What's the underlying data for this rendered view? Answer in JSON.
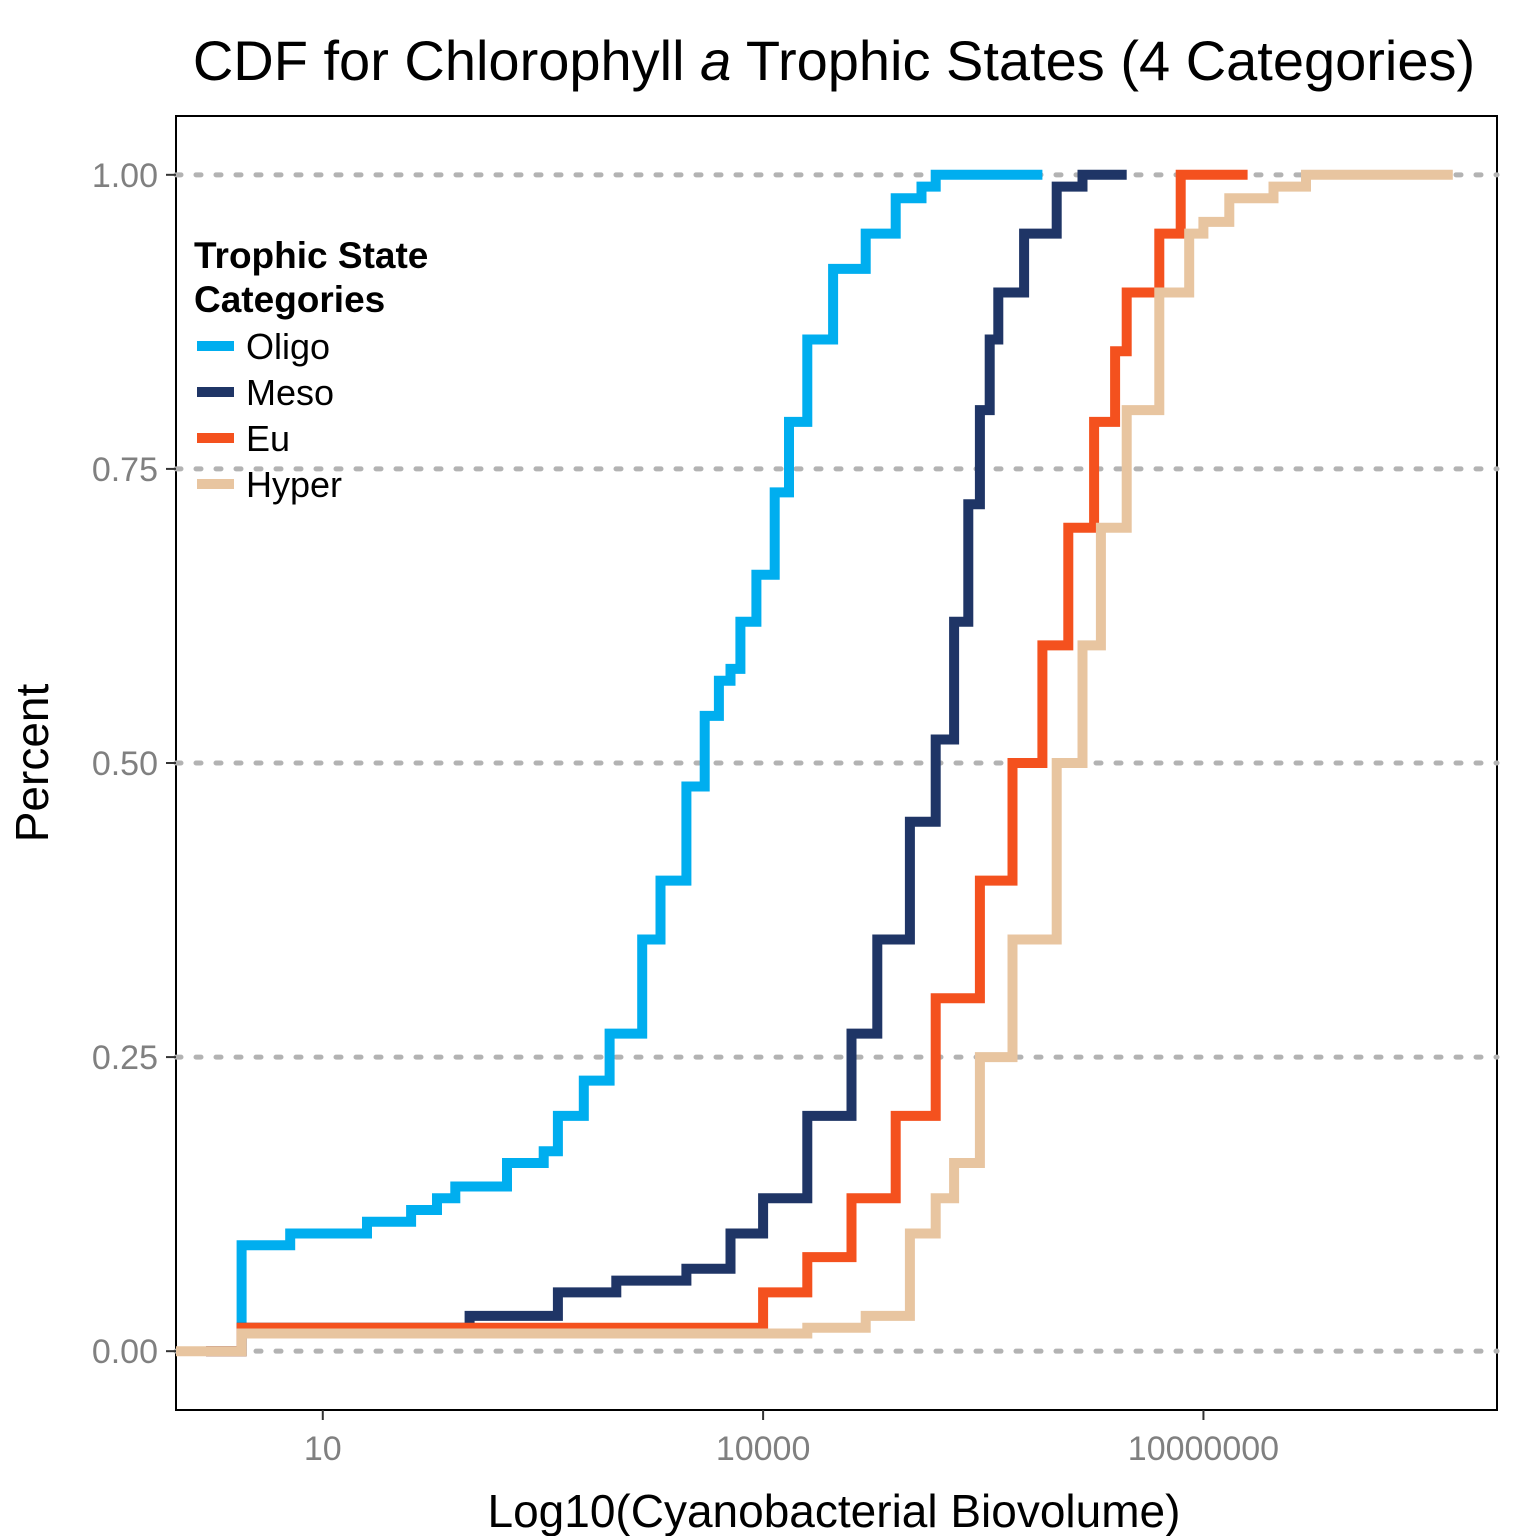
{
  "chart_data": {
    "type": "line",
    "title": {
      "prefix": "CDF for Chlorophyll ",
      "italic": "a",
      "suffix": " Trophic States (4 Categories)"
    },
    "xlabel": "Log10(Cyanobacterial Biovolume)",
    "ylabel": "Percent",
    "x_scale": "log10",
    "xlim": [
      1,
      1000000000
    ],
    "ylim": [
      -0.05,
      1.05
    ],
    "x_ticks": [
      {
        "value": 10,
        "label": "10"
      },
      {
        "value": 10000,
        "label": "10000"
      },
      {
        "value": 10000000,
        "label": "10000000"
      }
    ],
    "y_ticks": [
      {
        "value": 0.0,
        "label": "0.00"
      },
      {
        "value": 0.25,
        "label": "0.25"
      },
      {
        "value": 0.5,
        "label": "0.50"
      },
      {
        "value": 0.75,
        "label": "0.75"
      },
      {
        "value": 1.0,
        "label": "1.00"
      }
    ],
    "grid": "horizontal dotted at y ticks",
    "legend": {
      "title_lines": [
        "Trophic State",
        "Categories"
      ],
      "placement": "top-left inside"
    },
    "series": [
      {
        "name": "Oligo",
        "color": "#00AEEF",
        "x": [
          1.6,
          2.8,
          2.8,
          4.5,
          6,
          12,
          20,
          40,
          60,
          80,
          180,
          300,
          320,
          400,
          600,
          900,
          1500,
          2000,
          3000,
          4000,
          5000,
          6000,
          7000,
          9000,
          12000,
          15000,
          20000,
          30000,
          50000,
          80000,
          120000,
          150000,
          200000,
          250000,
          300000,
          400000,
          500000,
          800000
        ],
        "y": [
          0.0,
          0.0,
          0.09,
          0.09,
          0.1,
          0.1,
          0.11,
          0.12,
          0.13,
          0.14,
          0.16,
          0.16,
          0.17,
          0.2,
          0.23,
          0.27,
          0.35,
          0.4,
          0.48,
          0.54,
          0.57,
          0.58,
          0.62,
          0.66,
          0.73,
          0.79,
          0.86,
          0.92,
          0.95,
          0.98,
          0.99,
          1.0,
          1.0,
          1.0,
          1.0,
          1.0,
          1.0,
          1.0
        ]
      },
      {
        "name": "Meso",
        "color": "#1F3566",
        "x": [
          1.6,
          2.8,
          2.8,
          20,
          100,
          200,
          400,
          1000,
          3000,
          6000,
          10000,
          20000,
          40000,
          60000,
          100000,
          150000,
          200000,
          250000,
          300000,
          350000,
          400000,
          600000,
          1000000,
          1500000,
          3000000
        ],
        "y": [
          0.0,
          0.0,
          0.02,
          0.02,
          0.03,
          0.03,
          0.05,
          0.06,
          0.07,
          0.1,
          0.13,
          0.2,
          0.27,
          0.35,
          0.45,
          0.52,
          0.62,
          0.72,
          0.8,
          0.86,
          0.9,
          0.95,
          0.99,
          1.0,
          1.0
        ]
      },
      {
        "name": "Eu",
        "color": "#F4511E",
        "x": [
          1.6,
          2.8,
          2.8,
          200,
          1000,
          3000,
          10000,
          20000,
          40000,
          80000,
          150000,
          300000,
          500000,
          800000,
          1200000,
          1800000,
          2500000,
          3000000,
          5000000,
          7000000,
          10000000,
          20000000
        ],
        "y": [
          0.0,
          0.0,
          0.02,
          0.02,
          0.02,
          0.02,
          0.05,
          0.08,
          0.13,
          0.2,
          0.3,
          0.4,
          0.5,
          0.6,
          0.7,
          0.79,
          0.85,
          0.9,
          0.95,
          1.0,
          1.0,
          1.0
        ]
      },
      {
        "name": "Hyper",
        "color": "#E8C5A0",
        "x": [
          1.0,
          2.8,
          2.8,
          1000,
          10000,
          20000,
          50000,
          100000,
          150000,
          200000,
          300000,
          500000,
          1000000,
          1500000,
          2000000,
          3000000,
          5000000,
          8000000,
          10000000,
          15000000,
          30000000,
          50000000,
          100000000,
          500000000
        ],
        "y": [
          0.0,
          0.0,
          0.015,
          0.015,
          0.015,
          0.02,
          0.03,
          0.1,
          0.13,
          0.16,
          0.25,
          0.35,
          0.5,
          0.6,
          0.7,
          0.8,
          0.9,
          0.95,
          0.96,
          0.98,
          0.99,
          1.0,
          1.0,
          1.0
        ]
      }
    ]
  }
}
